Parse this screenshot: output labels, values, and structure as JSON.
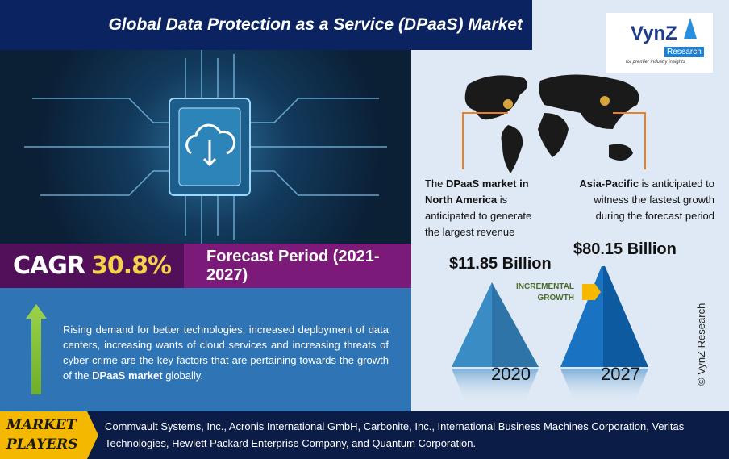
{
  "header": {
    "title": "Global Data Protection as a Service (DPaaS) Market"
  },
  "logo": {
    "brand": "VynZ",
    "sub": "Research",
    "tagline": "for premier industry insights"
  },
  "cagr": {
    "label": "CAGR",
    "value": "30.8%",
    "forecast": "Forecast Period (2021-2027)"
  },
  "description": {
    "text_before": "Rising demand for better technologies, increased deployment of data centers, increasing wants of cloud services and increasing threats of cyber-crime are the key factors that are pertaining towards the growth of the ",
    "bold": "DPaaS market",
    "text_after": " globally."
  },
  "regions": {
    "north_america": {
      "prefix": "The ",
      "bold": "DPaaS market in North America",
      "suffix": " is anticipated to generate the largest revenue"
    },
    "asia_pacific": {
      "bold": "Asia-Pacific",
      "suffix": " is anticipated to witness the fastest growth during the forecast period"
    }
  },
  "market": {
    "value_2020": "$11.85 Billion",
    "year_2020": "2020",
    "value_2027": "$80.15 Billion",
    "year_2027": "2027",
    "growth_label_1": "INCREMENTAL",
    "growth_label_2": "GROWTH"
  },
  "copyright": "© VynZ Research",
  "players": {
    "label_1": "MARKET",
    "label_2": "PLAYERS",
    "list": "Commvault Systems, Inc., Acronis International GmbH, Carbonite, Inc., International Business Machines Corporation, Veritas Technologies, Hewlett Packard Enterprise Company, and Quantum Corporation."
  },
  "colors": {
    "navy": "#0b2461",
    "purple": "#7b1a78",
    "blue": "#2f74b5",
    "yellow": "#f5b800"
  }
}
